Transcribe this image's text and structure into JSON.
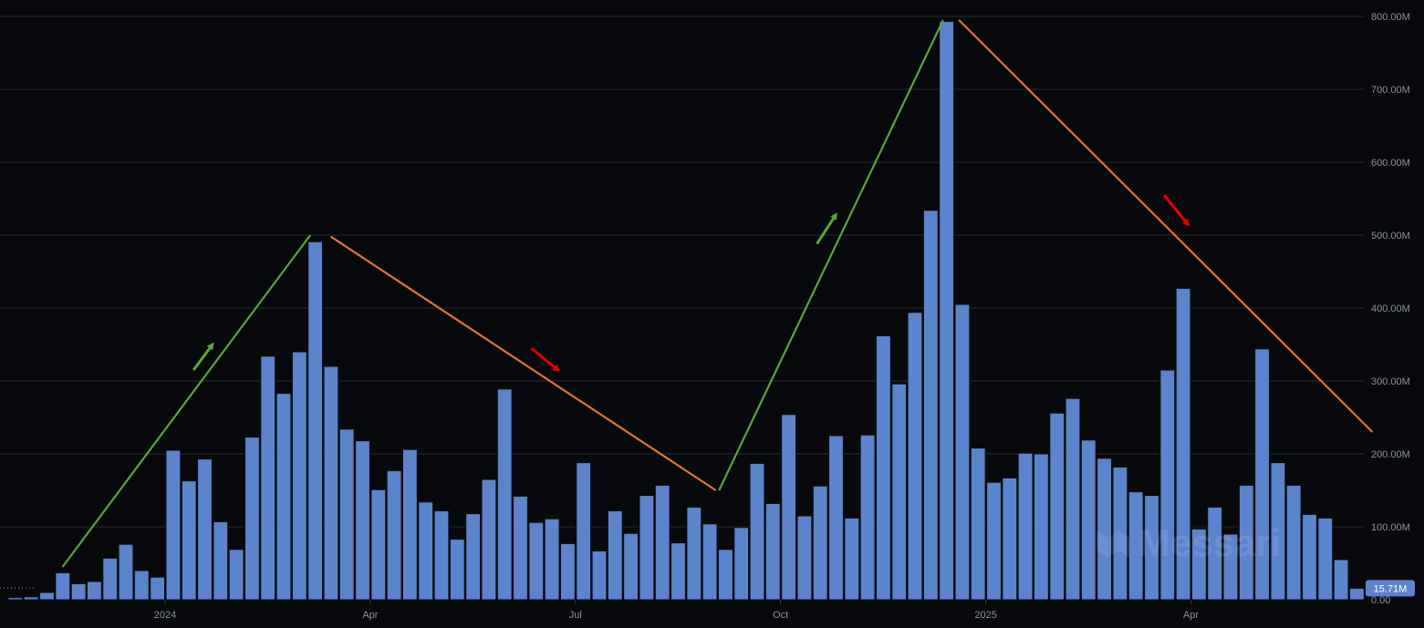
{
  "chart_data": {
    "type": "bar",
    "x_tick_labels": [
      "2024",
      "Apr",
      "Jul",
      "Oct",
      "2025",
      "Apr"
    ],
    "y_tick_labels": [
      "0.00",
      "100.00M",
      "200.00M",
      "300.00M",
      "400.00M",
      "500.00M",
      "600.00M",
      "700.00M",
      "800.00M"
    ],
    "ylim": [
      0,
      800
    ],
    "y_unit": "M",
    "grid": true,
    "values": [
      3,
      4,
      10,
      37,
      22,
      25,
      57,
      76,
      40,
      31,
      205,
      163,
      193,
      107,
      69,
      223,
      334,
      283,
      340,
      491,
      320,
      234,
      218,
      151,
      177,
      206,
      134,
      122,
      83,
      118,
      165,
      289,
      142,
      106,
      111,
      77,
      188,
      67,
      122,
      91,
      143,
      157,
      78,
      127,
      104,
      69,
      99,
      187,
      132,
      254,
      115,
      156,
      225,
      112,
      226,
      362,
      296,
      394,
      534,
      793,
      405,
      208,
      161,
      167,
      201,
      200,
      256,
      276,
      219,
      194,
      182,
      148,
      143,
      315,
      427,
      97,
      127,
      90,
      157,
      344,
      188,
      157,
      117,
      112,
      55,
      15.71
    ],
    "last_value_label": "15.71M",
    "trend_lines": [
      {
        "direction": "up",
        "color": "#5aa43c",
        "from": [
          3.5,
          45
        ],
        "to": [
          19.2,
          500
        ]
      },
      {
        "direction": "down",
        "color": "#e57233",
        "from": [
          20.5,
          498
        ],
        "to": [
          44.9,
          150
        ]
      },
      {
        "direction": "up",
        "color": "#5aa43c",
        "from": [
          45.1,
          150
        ],
        "to": [
          59.3,
          795
        ]
      },
      {
        "direction": "down",
        "color": "#e57233",
        "from": [
          60.3,
          795
        ],
        "to": [
          86.5,
          230
        ]
      }
    ],
    "annotation_arrows": [
      {
        "direction": "up",
        "color": "#5aa43c",
        "from": [
          11.8,
          315
        ],
        "to": [
          13.0,
          350
        ]
      },
      {
        "direction": "down",
        "color": "#e50000",
        "from": [
          33.2,
          345
        ],
        "to": [
          34.9,
          315
        ]
      },
      {
        "direction": "up",
        "color": "#5aa43c",
        "from": [
          51.3,
          488
        ],
        "to": [
          52.5,
          528
        ]
      },
      {
        "direction": "down",
        "color": "#e50000",
        "from": [
          73.3,
          555
        ],
        "to": [
          74.8,
          515
        ]
      }
    ],
    "colors": {
      "bar": "#5b84cc",
      "badge": "#5b84cc",
      "background": "#07090c"
    }
  },
  "watermark": {
    "text": "Messari"
  }
}
